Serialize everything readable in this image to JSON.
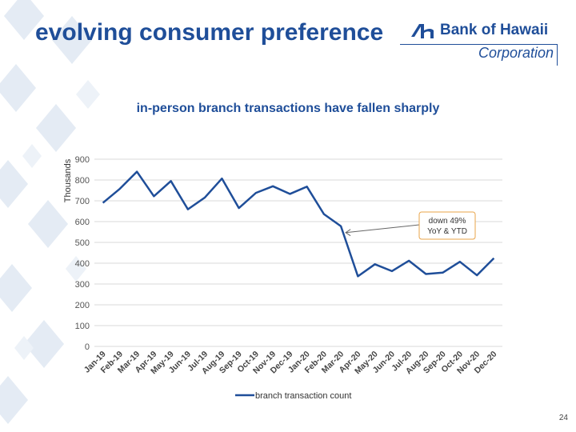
{
  "slide": {
    "title": "evolving consumer preference",
    "subtitle": "in-person branch transactions have fallen sharply",
    "page_number": "24"
  },
  "logo": {
    "name": "Bank of Hawaii",
    "corporation": "Corporation"
  },
  "colors": {
    "brand": "#1f4e99",
    "series": "#1f4e99",
    "grid": "#d9d9d9",
    "callout_border": "#e8a44a"
  },
  "chart_data": {
    "type": "line",
    "x": [
      "Jan-19",
      "Feb-19",
      "Mar-19",
      "Apr-19",
      "May-19",
      "Jun-19",
      "Jul-19",
      "Aug-19",
      "Sep-19",
      "Oct-19",
      "Nov-19",
      "Dec-19",
      "Jan-20",
      "Feb-20",
      "Mar-20",
      "Apr-20",
      "May-20",
      "Jun-20",
      "Jul-20",
      "Aug-20",
      "Sep-20",
      "Oct-20",
      "Nov-20",
      "Dec-20"
    ],
    "series": [
      {
        "name": "branch transaction count",
        "values": [
          690,
          758,
          840,
          722,
          795,
          659,
          716,
          807,
          665,
          738,
          770,
          733,
          768,
          636,
          578,
          337,
          395,
          362,
          412,
          348,
          355,
          407,
          342,
          424
        ]
      }
    ],
    "ylabel": "Thousands",
    "ylim": [
      0,
      900
    ],
    "yticks": [
      0,
      100,
      200,
      300,
      400,
      500,
      600,
      700,
      800,
      900
    ],
    "grid": true,
    "legend": "bottom",
    "annotation": {
      "lines": [
        "down 49%",
        "YoY & YTD"
      ],
      "points_to": "Mar-20"
    }
  }
}
